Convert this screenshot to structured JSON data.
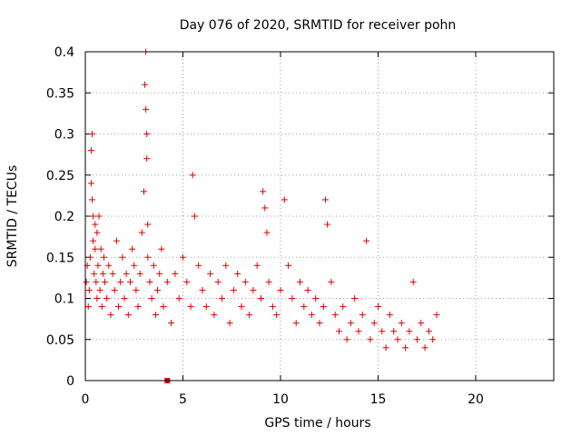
{
  "chart_data": {
    "type": "scatter",
    "title": "Day 076 of 2020, SRMTID for receiver pohn",
    "xlabel": "GPS time / hours",
    "ylabel": "SRMTID / TECUs",
    "xlim": [
      0,
      24
    ],
    "ylim": [
      0,
      0.4
    ],
    "xticks": [
      0,
      5,
      10,
      15,
      20
    ],
    "xtick_labels": [
      "0",
      "5",
      "10",
      "15",
      "20"
    ],
    "yticks": [
      0,
      0.05,
      0.1,
      0.15,
      0.2,
      0.25,
      0.3,
      0.35,
      0.4
    ],
    "ytick_labels": [
      "0",
      "0.05",
      "0.1",
      "0.15",
      "0.2",
      "0.25",
      "0.3",
      "0.35",
      "0.4"
    ],
    "grid": true,
    "marker_color": "#e00000",
    "marker": "plus",
    "series": [
      {
        "name": "SRMTID",
        "x": [
          0.05,
          0.1,
          0.15,
          0.2,
          0.25,
          0.3,
          0.3,
          0.35,
          0.35,
          0.4,
          0.4,
          0.45,
          0.5,
          0.5,
          0.55,
          0.6,
          0.6,
          0.65,
          0.7,
          0.75,
          0.8,
          0.85,
          0.9,
          0.95,
          1.0,
          1.1,
          1.2,
          1.3,
          1.4,
          1.5,
          1.6,
          1.7,
          1.8,
          1.9,
          2.0,
          2.1,
          2.2,
          2.3,
          2.4,
          2.5,
          2.6,
          2.7,
          2.8,
          2.9,
          3.0,
          3.05,
          3.1,
          3.1,
          3.15,
          3.15,
          3.2,
          3.2,
          3.3,
          3.4,
          3.5,
          3.6,
          3.7,
          3.8,
          3.9,
          4.0,
          4.2,
          4.4,
          4.6,
          4.8,
          5.0,
          5.2,
          5.4,
          5.5,
          5.6,
          5.8,
          6.0,
          6.2,
          6.4,
          6.6,
          6.8,
          7.0,
          7.2,
          7.4,
          7.6,
          7.8,
          8.0,
          8.2,
          8.4,
          8.6,
          8.8,
          9.0,
          9.1,
          9.2,
          9.3,
          9.4,
          9.6,
          9.8,
          10.0,
          10.2,
          10.4,
          10.6,
          10.8,
          11.0,
          11.2,
          11.4,
          11.6,
          11.8,
          12.0,
          12.2,
          12.3,
          12.4,
          12.6,
          12.8,
          13.0,
          13.2,
          13.4,
          13.6,
          13.8,
          14.0,
          14.2,
          14.4,
          14.6,
          14.8,
          15.0,
          15.2,
          15.4,
          15.6,
          15.8,
          16.0,
          16.2,
          16.4,
          16.6,
          16.8,
          17.0,
          17.2,
          17.4,
          17.6,
          17.8,
          18.0
        ],
        "y": [
          0.12,
          0.14,
          0.09,
          0.11,
          0.15,
          0.28,
          0.24,
          0.3,
          0.22,
          0.2,
          0.17,
          0.13,
          0.19,
          0.16,
          0.12,
          0.18,
          0.1,
          0.14,
          0.2,
          0.11,
          0.16,
          0.09,
          0.13,
          0.15,
          0.12,
          0.1,
          0.14,
          0.08,
          0.13,
          0.11,
          0.17,
          0.09,
          0.12,
          0.15,
          0.1,
          0.13,
          0.08,
          0.12,
          0.16,
          0.14,
          0.11,
          0.09,
          0.13,
          0.18,
          0.23,
          0.36,
          0.4,
          0.33,
          0.3,
          0.27,
          0.19,
          0.15,
          0.12,
          0.1,
          0.14,
          0.08,
          0.11,
          0.13,
          0.16,
          0.09,
          0.12,
          0.07,
          0.13,
          0.1,
          0.15,
          0.12,
          0.09,
          0.25,
          0.2,
          0.14,
          0.11,
          0.09,
          0.13,
          0.08,
          0.12,
          0.1,
          0.14,
          0.07,
          0.11,
          0.13,
          0.09,
          0.12,
          0.08,
          0.11,
          0.14,
          0.1,
          0.23,
          0.21,
          0.18,
          0.12,
          0.09,
          0.08,
          0.11,
          0.22,
          0.14,
          0.1,
          0.07,
          0.12,
          0.09,
          0.11,
          0.08,
          0.1,
          0.07,
          0.09,
          0.22,
          0.19,
          0.12,
          0.08,
          0.06,
          0.09,
          0.05,
          0.07,
          0.1,
          0.06,
          0.08,
          0.17,
          0.05,
          0.07,
          0.09,
          0.06,
          0.04,
          0.08,
          0.06,
          0.05,
          0.07,
          0.04,
          0.06,
          0.12,
          0.05,
          0.07,
          0.04,
          0.06,
          0.05,
          0.08
        ]
      }
    ],
    "extra_marks": [
      {
        "name": "outlier-square",
        "x": 4.2,
        "y": 0.0,
        "shape": "square"
      }
    ]
  }
}
